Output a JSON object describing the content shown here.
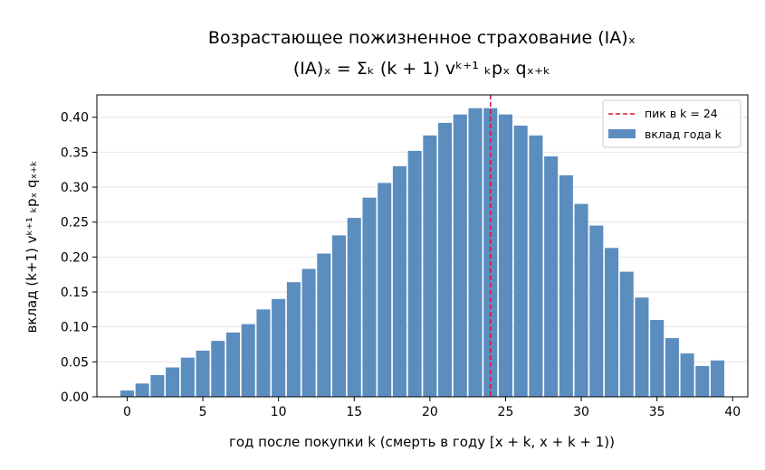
{
  "chart_data": {
    "type": "bar",
    "title_line1": "Возрастающее пожизненное страхование (IA)ₓ",
    "title_line2": "(IA)ₓ = Σₖ (k + 1) vᵏ⁺¹ ₖpₓ qₓ₊ₖ",
    "xlabel": "год после покупки k (смерть в году [x + k, x + k + 1))",
    "ylabel": "вклад (k+1) vᵏ⁺¹ ₖpₓ qₓ₊ₖ",
    "x": [
      0,
      1,
      2,
      3,
      4,
      5,
      6,
      7,
      8,
      9,
      10,
      11,
      12,
      13,
      14,
      15,
      16,
      17,
      18,
      19,
      20,
      21,
      22,
      23,
      24,
      25,
      26,
      27,
      28,
      29,
      30,
      31,
      32,
      33,
      34,
      35,
      36,
      37,
      38,
      39
    ],
    "values": [
      0.009,
      0.019,
      0.031,
      0.042,
      0.056,
      0.066,
      0.08,
      0.092,
      0.104,
      0.125,
      0.14,
      0.164,
      0.183,
      0.205,
      0.231,
      0.256,
      0.285,
      0.306,
      0.33,
      0.352,
      0.374,
      0.392,
      0.404,
      0.413,
      0.413,
      0.404,
      0.388,
      0.374,
      0.344,
      0.317,
      0.276,
      0.245,
      0.213,
      0.179,
      0.142,
      0.11,
      0.084,
      0.062,
      0.044,
      0.052
    ],
    "xlim": [
      -2,
      41
    ],
    "ylim": [
      0,
      0.432
    ],
    "xticks": [
      0,
      5,
      10,
      15,
      20,
      25,
      30,
      35,
      40
    ],
    "yticks": [
      0.0,
      0.05,
      0.1,
      0.15,
      0.2,
      0.25,
      0.3,
      0.35,
      0.4
    ],
    "ytick_labels": [
      "0.00",
      "0.05",
      "0.10",
      "0.15",
      "0.20",
      "0.25",
      "0.30",
      "0.35",
      "0.40"
    ],
    "peak_x": 24,
    "grid": "horizontal",
    "legend_position": "top-right",
    "legend": [
      {
        "label": "пик в k = 24",
        "style": "dashed-line"
      },
      {
        "label": "вклад года k",
        "style": "bar"
      }
    ],
    "colors": {
      "bar": "#5b8dbf",
      "peak_line": "#dc143c",
      "grid": "#e6e6e6"
    }
  }
}
